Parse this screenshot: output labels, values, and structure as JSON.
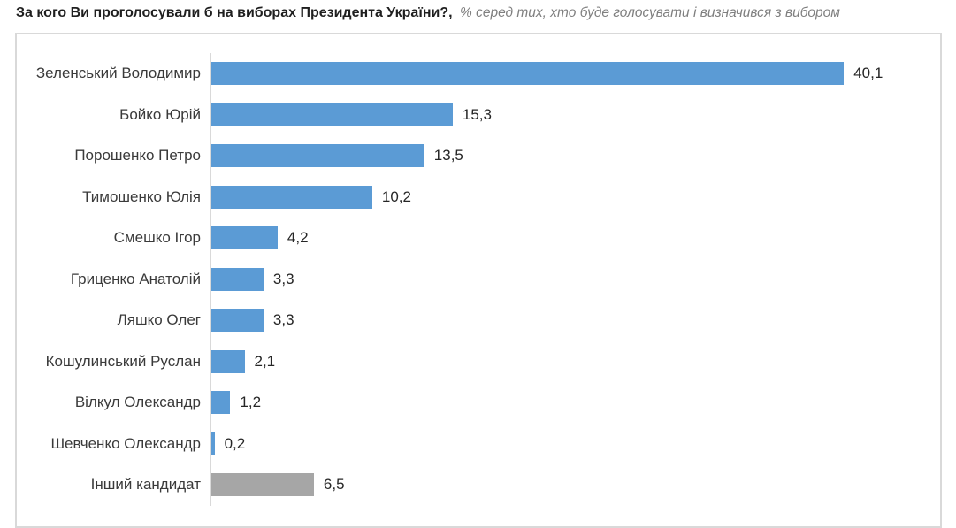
{
  "header": {
    "title": "За кого Ви проголосували б на виборах Президента України?,",
    "subtitle": "% серед тих, хто буде голосувати і визначився з вибором"
  },
  "chart_data": {
    "type": "bar",
    "orientation": "horizontal",
    "title": "За кого Ви проголосували б на виборах Президента України?",
    "subtitle": "% серед тих, хто буде голосувати і визначився з вибором",
    "categories": [
      "Зеленський Володимир",
      "Бойко Юрій",
      "Порошенко Петро",
      "Тимошенко Юлія",
      "Смешко Ігор",
      "Гриценко Анатолій",
      "Ляшко Олег",
      "Кошулинський Руслан",
      "Вілкул Олександр",
      "Шевченко Олександр",
      "Інший кандидат"
    ],
    "values": [
      40.1,
      15.3,
      13.5,
      10.2,
      4.2,
      3.3,
      3.3,
      2.1,
      1.2,
      0.2,
      6.5
    ],
    "value_labels": [
      "40,1",
      "15,3",
      "13,5",
      "10,2",
      "4,2",
      "3,3",
      "3,3",
      "2,1",
      "1,2",
      "0,2",
      "6,5"
    ],
    "bar_colors": [
      "#5b9bd5",
      "#5b9bd5",
      "#5b9bd5",
      "#5b9bd5",
      "#5b9bd5",
      "#5b9bd5",
      "#5b9bd5",
      "#5b9bd5",
      "#5b9bd5",
      "#5b9bd5",
      "#a6a6a6"
    ],
    "xlim": [
      0,
      46.2
    ],
    "grid": false,
    "legend": false,
    "data_labels": true
  },
  "colors": {
    "bar_blue": "#5b9bd5",
    "bar_gray": "#a6a6a6",
    "frame_border": "#d9d9d9",
    "axis_line": "#d9d9d9",
    "category_text": "#3a3a3a",
    "value_text": "#262626",
    "title_text": "#1f1f1f",
    "subtitle_text": "#7f7f7f"
  }
}
